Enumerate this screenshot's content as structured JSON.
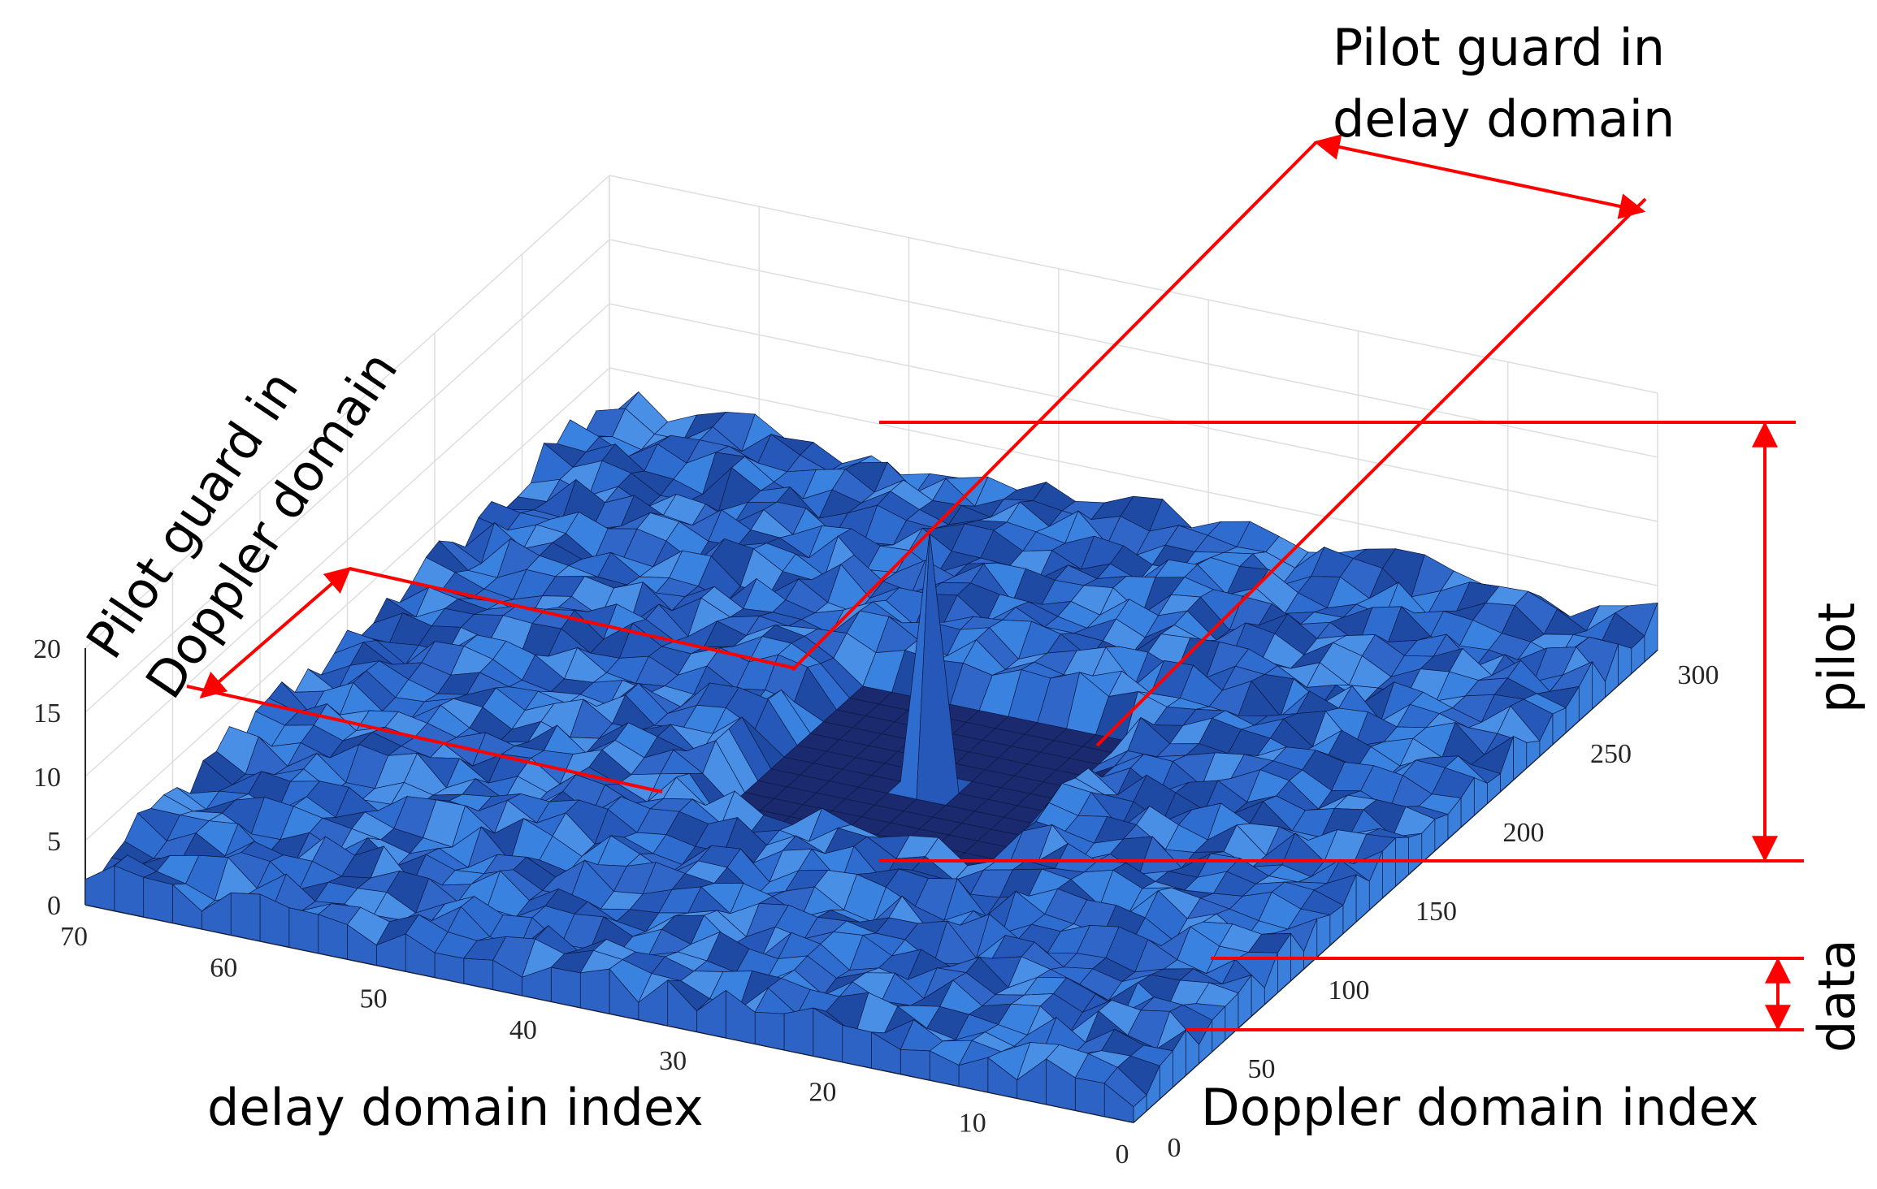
{
  "chart_data": {
    "type": "surface",
    "title": "",
    "xlabel": "delay domain index",
    "ylabel": "Doppler domain index",
    "zlabel": "",
    "x_ticks": [
      "0",
      "10",
      "20",
      "30",
      "40",
      "50",
      "60",
      "70"
    ],
    "y_ticks": [
      "0",
      "50",
      "100",
      "150",
      "200",
      "250",
      "300"
    ],
    "z_ticks": [
      "0",
      "5",
      "10",
      "15",
      "20"
    ],
    "xlim": [
      0,
      70
    ],
    "ylim": [
      0,
      300
    ],
    "zlim": [
      0,
      20
    ],
    "grid": true,
    "surface_color": "#2f6fd0",
    "edge_color": "#0a1a40",
    "data_level": 2.2,
    "pilot": {
      "delay": 32,
      "doppler": 150,
      "height": 20
    },
    "guard": {
      "delay_range": [
        22,
        42
      ],
      "doppler_range": [
        110,
        200
      ]
    },
    "annotations": {
      "delay_guard": "Pilot guard in\ndelay domain",
      "doppler_guard": "Pilot guard in\nDoppler domain",
      "pilot": "pilot",
      "data": "data"
    },
    "annotation_color": "#ff0000"
  }
}
